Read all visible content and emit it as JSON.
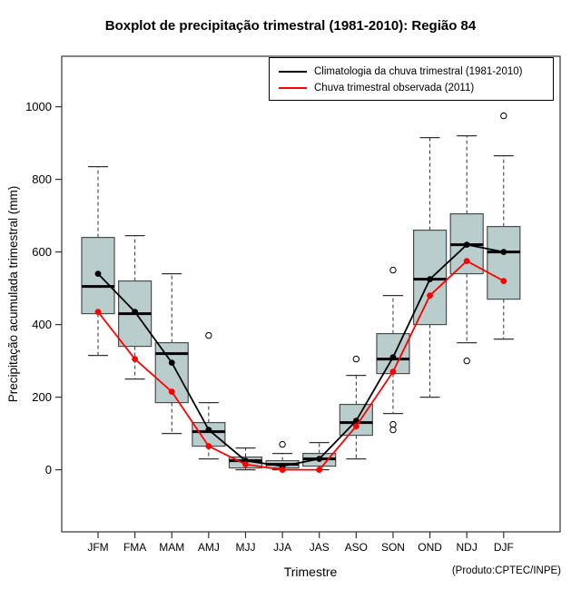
{
  "chart_data": {
    "type": "boxplot",
    "title": "Boxplot de precipitação trimestral (1981-2010): Região 84",
    "xlabel": "Trimestre",
    "ylabel": "Precipitação acumulada trimestral (mm)",
    "note": "(Produto:CPTEC/INPE)",
    "categories": [
      "JFM",
      "FMA",
      "MAM",
      "AMJ",
      "MJJ",
      "JJA",
      "JAS",
      "ASO",
      "SON",
      "OND",
      "NDJ",
      "DJF"
    ],
    "yticks": [
      0,
      200,
      400,
      600,
      800,
      1000
    ],
    "ylim": [
      -171,
      1139
    ],
    "grid": false,
    "legend_position": "top-right",
    "boxes": [
      {
        "low": 315,
        "q1": 430,
        "median": 505,
        "q3": 640,
        "high": 835,
        "outliers": []
      },
      {
        "low": 250,
        "q1": 340,
        "median": 430,
        "q3": 520,
        "high": 645,
        "outliers": []
      },
      {
        "low": 100,
        "q1": 185,
        "median": 320,
        "q3": 350,
        "high": 540,
        "outliers": []
      },
      {
        "low": 30,
        "q1": 65,
        "median": 105,
        "q3": 130,
        "high": 185,
        "outliers": [
          370
        ]
      },
      {
        "low": 0,
        "q1": 5,
        "median": 25,
        "q3": 35,
        "high": 60,
        "outliers": []
      },
      {
        "low": 0,
        "q1": 5,
        "median": 15,
        "q3": 25,
        "high": 45,
        "outliers": [
          70
        ]
      },
      {
        "low": 0,
        "q1": 10,
        "median": 30,
        "q3": 45,
        "high": 75,
        "outliers": []
      },
      {
        "low": 30,
        "q1": 95,
        "median": 130,
        "q3": 180,
        "high": 260,
        "outliers": [
          305
        ]
      },
      {
        "low": 155,
        "q1": 265,
        "median": 305,
        "q3": 375,
        "high": 480,
        "outliers": [
          550,
          125,
          110
        ]
      },
      {
        "low": 200,
        "q1": 400,
        "median": 525,
        "q3": 660,
        "high": 915,
        "outliers": []
      },
      {
        "low": 350,
        "q1": 540,
        "median": 620,
        "q3": 705,
        "high": 920,
        "outliers": [
          300
        ]
      },
      {
        "low": 360,
        "q1": 470,
        "median": 600,
        "q3": 670,
        "high": 865,
        "outliers": [
          975
        ]
      }
    ],
    "series": [
      {
        "name": "Climatologia da chuva trimestral (1981-2010)",
        "color": "#000000",
        "values": [
          540,
          435,
          295,
          110,
          25,
          10,
          30,
          135,
          310,
          525,
          620,
          600
        ]
      },
      {
        "name": "Chuva trimestral observada (2011)",
        "color": "#ff0000",
        "values": [
          435,
          305,
          215,
          65,
          15,
          0,
          0,
          120,
          270,
          480,
          575,
          520
        ]
      }
    ],
    "colors": {
      "box_fill": "#b9cdcc",
      "box_border": "#4d4d4d",
      "whisker": "#333333",
      "median": "#000000",
      "outlier_stroke": "#000000",
      "frame": "#333333"
    }
  }
}
